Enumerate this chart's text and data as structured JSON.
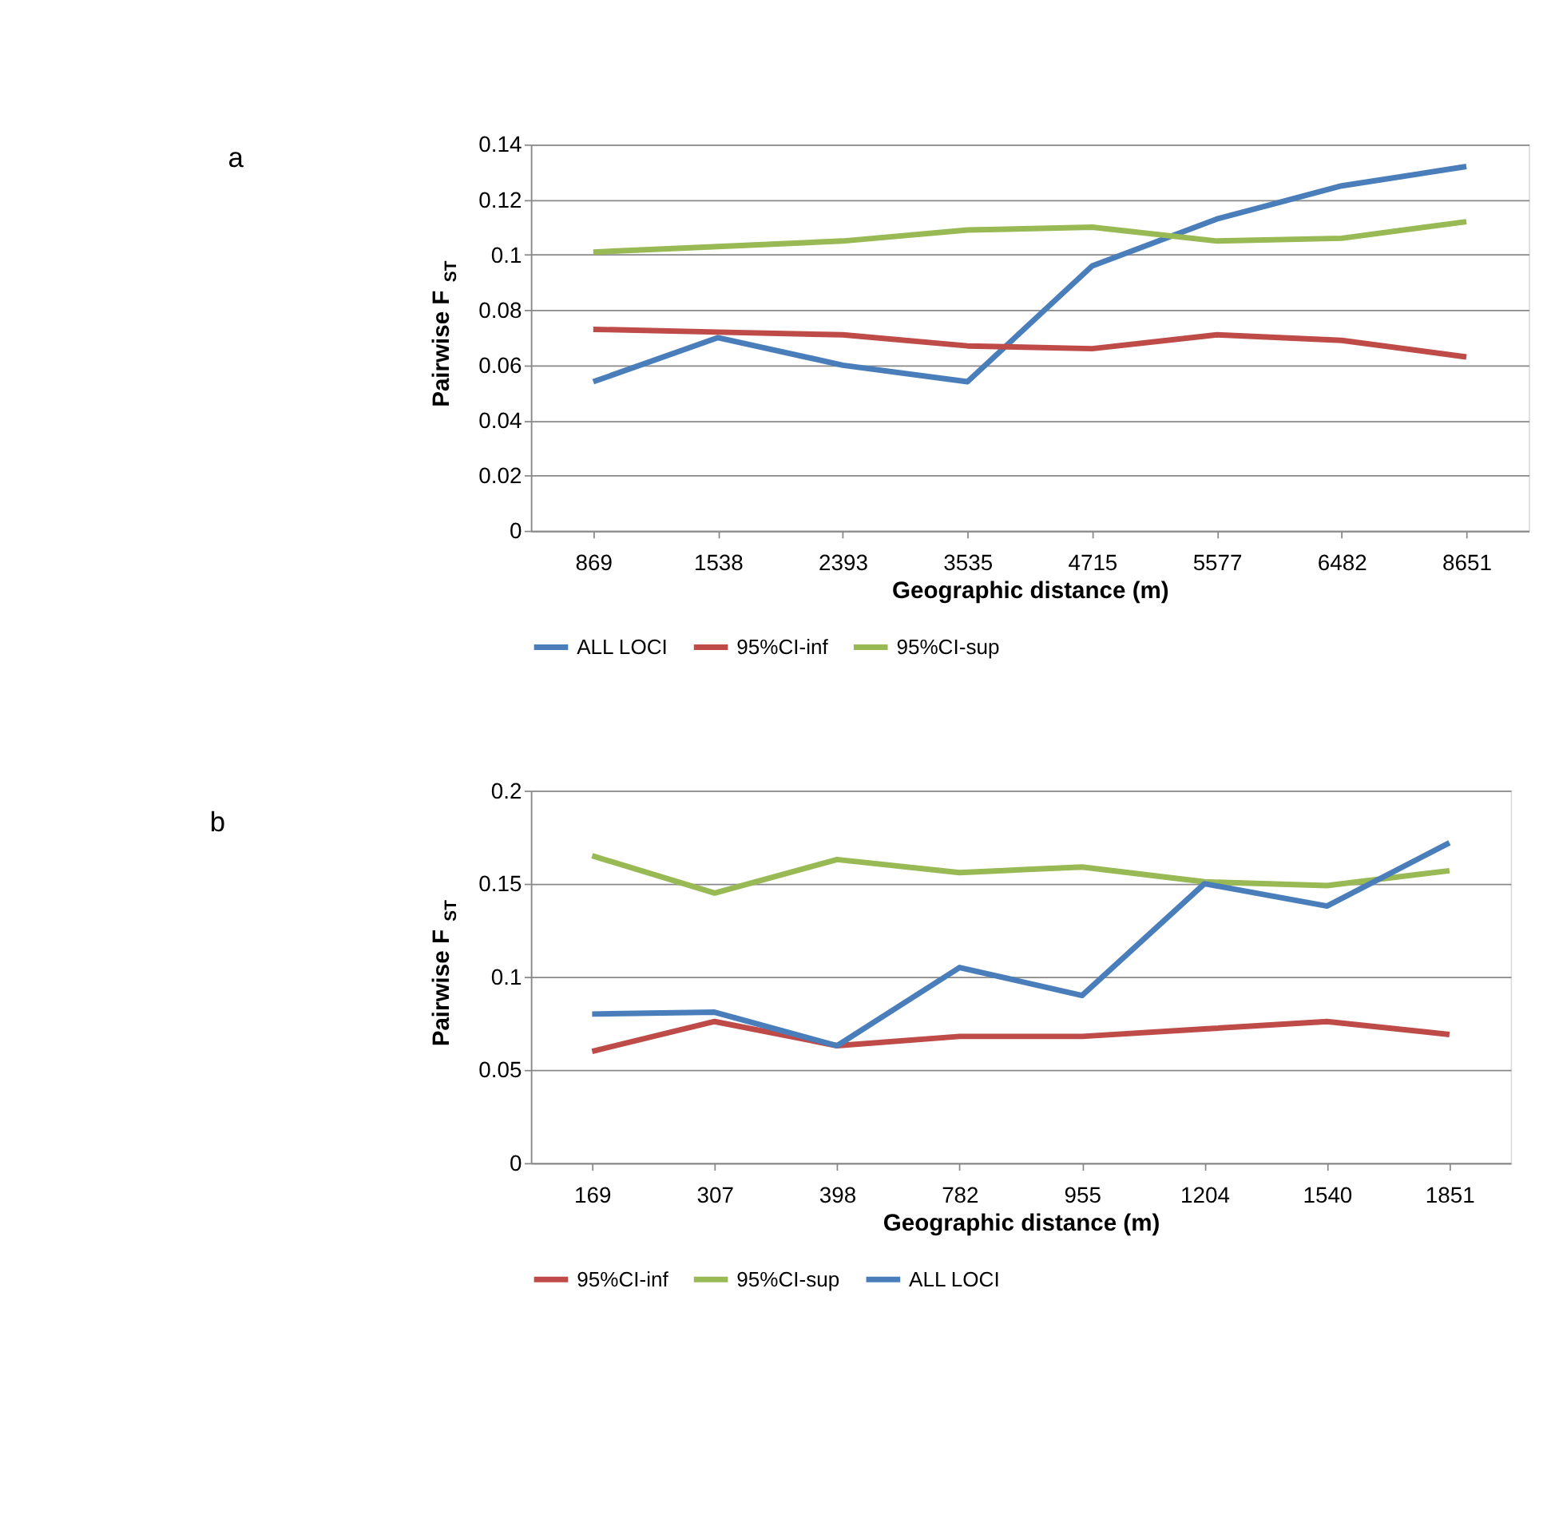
{
  "chart_data": [
    {
      "type": "line",
      "xlabel": "Geographic distance (m)",
      "ylabel": "Pairwise F$_{ST}$",
      "annotations": [
        "a"
      ],
      "categories": [
        "869",
        "1538",
        "2393",
        "3535",
        "4715",
        "5577",
        "6482",
        "8651"
      ],
      "series": [
        {
          "name": "ALL LOCI",
          "color": "#4a7ebb",
          "values": [
            0.054,
            0.07,
            0.06,
            0.054,
            0.096,
            0.113,
            0.125,
            0.132
          ]
        },
        {
          "name": "95%CI-inf",
          "color": "#be4b48",
          "values": [
            0.073,
            0.072,
            0.071,
            0.067,
            0.066,
            0.071,
            0.069,
            0.063
          ]
        },
        {
          "name": "95%CI-sup",
          "color": "#98b954",
          "values": [
            0.101,
            0.103,
            0.105,
            0.109,
            0.11,
            0.105,
            0.106,
            0.112
          ]
        }
      ],
      "ylim": [
        0,
        0.14
      ],
      "yticks": [
        0,
        0.02,
        0.04,
        0.06,
        0.08,
        0.1,
        0.12,
        0.14
      ],
      "grid": "y",
      "legend": "bottom",
      "marker": "none",
      "line_style": "solid"
    },
    {
      "type": "line",
      "xlabel": "Geographic distance (m)",
      "ylabel": "Pairwise F$_{ST}$",
      "annotations": [
        "b"
      ],
      "categories": [
        "169",
        "307",
        "398",
        "782",
        "955",
        "1204",
        "1540",
        "1851"
      ],
      "series": [
        {
          "name": "95%CI-inf",
          "color": "#be4b48",
          "values": [
            0.06,
            0.076,
            0.063,
            0.068,
            0.068,
            0.072,
            0.076,
            0.069
          ]
        },
        {
          "name": "95%CI-sup",
          "color": "#98b954",
          "values": [
            0.165,
            0.145,
            0.163,
            0.156,
            0.159,
            0.151,
            0.149,
            0.157
          ]
        },
        {
          "name": "ALL LOCI",
          "color": "#4a7ebb",
          "values": [
            0.08,
            0.081,
            0.063,
            0.105,
            0.09,
            0.15,
            0.138,
            0.172
          ]
        }
      ],
      "ylim": [
        0,
        0.2
      ],
      "yticks": [
        0,
        0.05,
        0.1,
        0.15,
        0.2
      ],
      "grid": "y",
      "legend": "bottom",
      "marker": "none",
      "line_style": "solid"
    }
  ]
}
